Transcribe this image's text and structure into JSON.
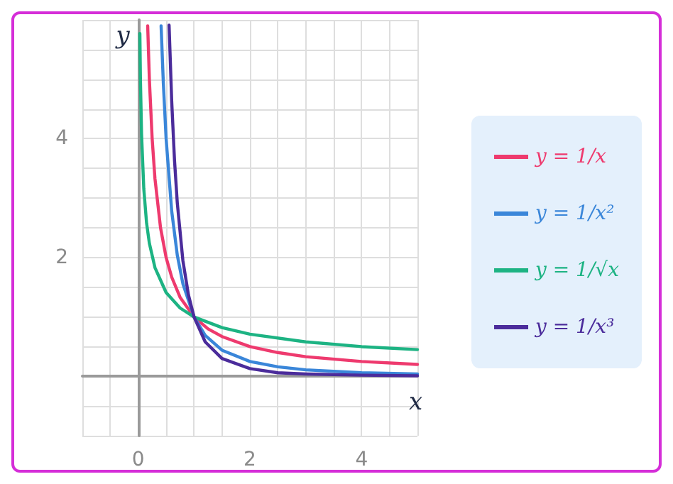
{
  "chart_data": {
    "type": "line",
    "xlabel": "x",
    "ylabel": "y",
    "xlim": [
      -1,
      5
    ],
    "ylim": [
      -1,
      6
    ],
    "xticks": [
      {
        "value": -1,
        "label": null
      },
      {
        "value": -0.5,
        "label": null
      },
      0,
      {
        "value": 0.5,
        "label": null
      },
      {
        "value": 1,
        "label": null
      },
      {
        "value": 1.5,
        "label": null
      },
      2,
      {
        "value": 2.5,
        "label": null
      },
      {
        "value": 3,
        "label": null
      },
      {
        "value": 3.5,
        "label": null
      },
      4,
      {
        "value": 4.5,
        "label": null
      },
      {
        "value": 5,
        "label": null
      }
    ],
    "yticks": [
      {
        "value": -1,
        "label": null
      },
      {
        "value": -0.5,
        "label": null
      },
      {
        "value": 0,
        "label": null
      },
      {
        "value": 0.5,
        "label": null
      },
      {
        "value": 1,
        "label": null
      },
      {
        "value": 1.5,
        "label": null
      },
      2,
      {
        "value": 2.5,
        "label": null
      },
      {
        "value": 3,
        "label": null
      },
      {
        "value": 3.5,
        "label": null
      },
      4,
      {
        "value": 4.5,
        "label": null
      },
      {
        "value": 5,
        "label": null
      },
      {
        "value": 5.5,
        "label": null
      },
      {
        "value": 6,
        "label": null
      }
    ],
    "grid": true,
    "legend": "right",
    "marker": "none",
    "line_style": "solid",
    "series": [
      {
        "name": "y = 1/x",
        "color": "#ee3a6e",
        "x": [
          0.17,
          0.2,
          0.25,
          0.3,
          0.4,
          0.5,
          0.6,
          0.75,
          1,
          1.25,
          1.5,
          2,
          2.5,
          3,
          4,
          5
        ],
        "values": [
          5.9,
          5,
          4,
          3.33,
          2.5,
          2,
          1.67,
          1.33,
          1,
          0.8,
          0.67,
          0.5,
          0.4,
          0.33,
          0.25,
          0.2
        ]
      },
      {
        "name": "y = 1/x²",
        "color": "#3a86d9",
        "x": [
          0.41,
          0.45,
          0.5,
          0.6,
          0.7,
          0.8,
          1,
          1.2,
          1.5,
          2,
          2.5,
          3,
          4,
          5
        ],
        "values": [
          5.9,
          4.94,
          4,
          2.78,
          2.04,
          1.56,
          1,
          0.69,
          0.44,
          0.25,
          0.16,
          0.11,
          0.06,
          0.04
        ]
      },
      {
        "name": "y = 1/√x",
        "color": "#1db383",
        "x": [
          0.03,
          0.04,
          0.06,
          0.1,
          0.15,
          0.2,
          0.3,
          0.5,
          0.75,
          1,
          1.5,
          2,
          3,
          4,
          5
        ],
        "values": [
          5.77,
          5,
          4.08,
          3.16,
          2.58,
          2.24,
          1.83,
          1.41,
          1.15,
          1,
          0.82,
          0.71,
          0.58,
          0.5,
          0.45
        ]
      },
      {
        "name": "y = 1/x³",
        "color": "#4b2c9b",
        "x": [
          0.553,
          0.6,
          0.65,
          0.7,
          0.8,
          0.9,
          1,
          1.2,
          1.5,
          2,
          2.5,
          3,
          4,
          5
        ],
        "values": [
          5.91,
          4.63,
          3.64,
          2.92,
          1.95,
          1.37,
          1,
          0.58,
          0.3,
          0.13,
          0.06,
          0.04,
          0.02,
          0.01
        ]
      }
    ]
  }
}
